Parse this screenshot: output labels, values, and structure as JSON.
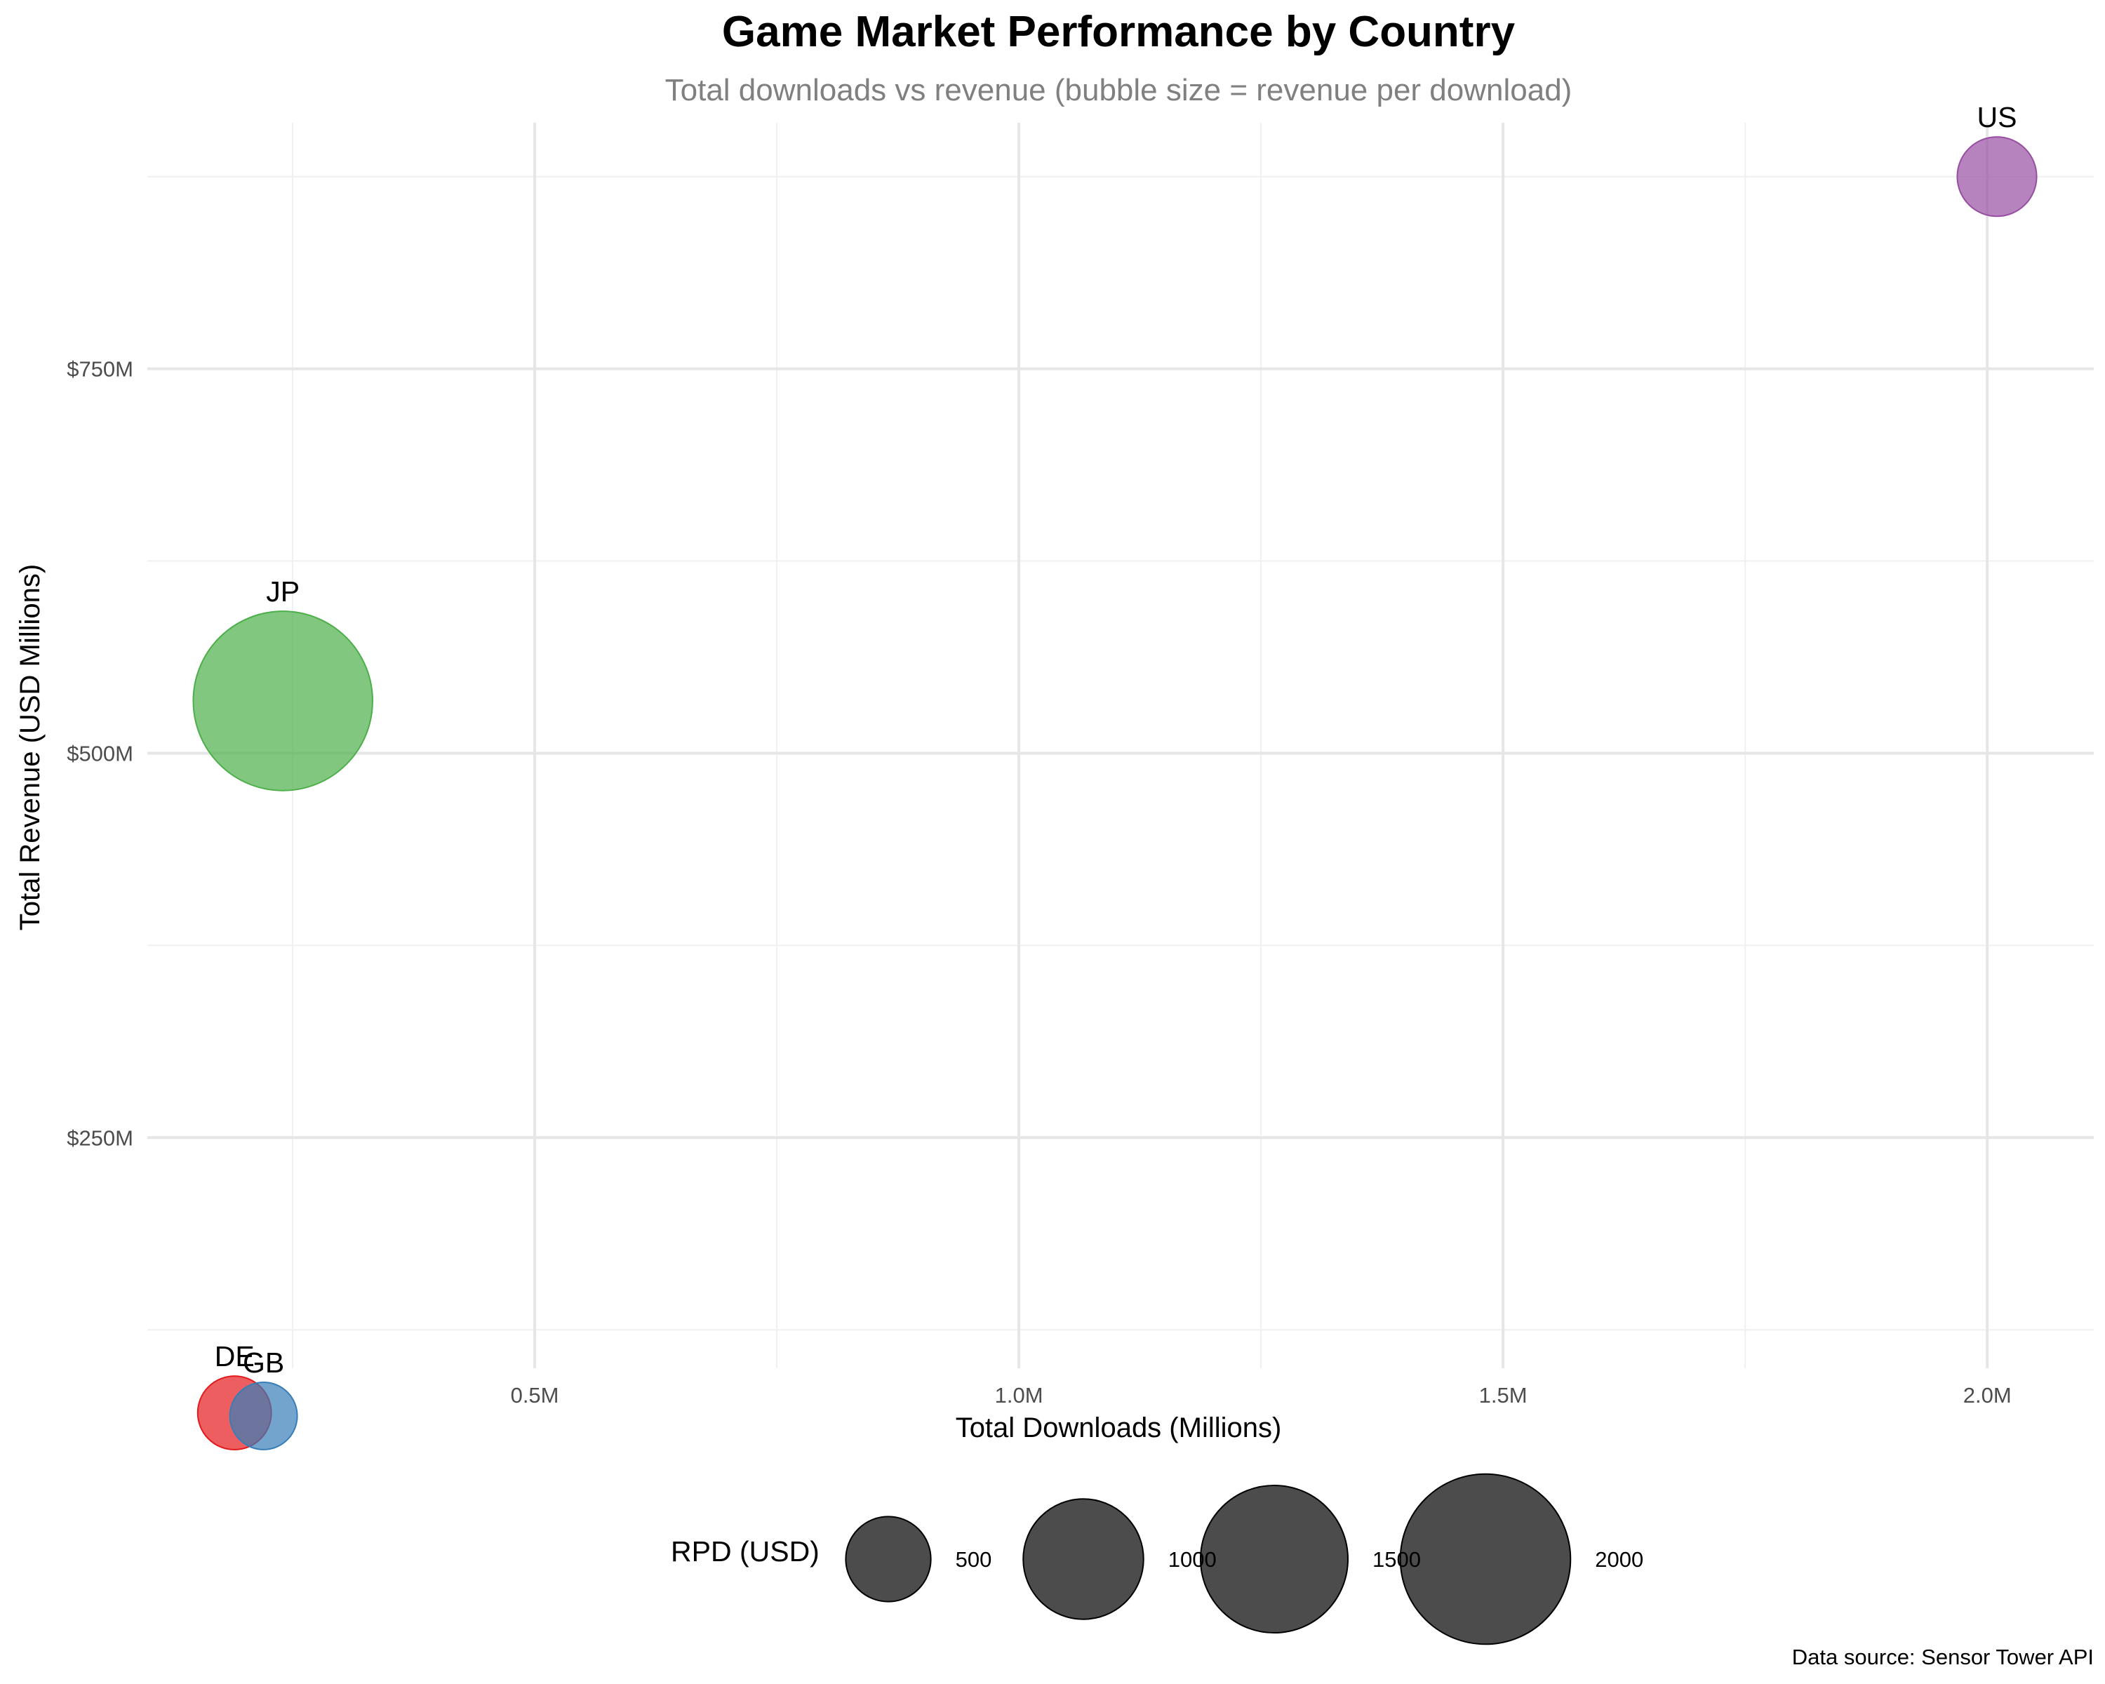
{
  "chart_data": {
    "type": "scatter",
    "title": "Game Market Performance by Country",
    "subtitle": "Total downloads vs revenue (bubble size = revenue per download)",
    "xlabel": "Total Downloads (Millions)",
    "ylabel": "Total Revenue (USD Millions)",
    "xlim": [
      0.1,
      2.11
    ],
    "ylim": [
      100,
      910
    ],
    "x_ticks": [
      0.5,
      1.0,
      1.5,
      2.0
    ],
    "x_tick_labels": [
      "0.5M",
      "1.0M",
      "1.5M",
      "2.0M"
    ],
    "y_ticks": [
      250,
      500,
      750
    ],
    "y_tick_labels": [
      "$250M",
      "$500M",
      "$750M"
    ],
    "grid": true,
    "points": [
      {
        "label": "US",
        "x": 2.01,
        "y": 875,
        "rpd": 435,
        "color": "#984EA3"
      },
      {
        "label": "JP",
        "x": 0.24,
        "y": 534,
        "rpd": 2220,
        "color": "#4DAF4A"
      },
      {
        "label": "DE",
        "x": 0.19,
        "y": 71,
        "rpd": 374,
        "color": "#E41A1C"
      },
      {
        "label": "GB",
        "x": 0.22,
        "y": 69,
        "rpd": 313,
        "color": "#377EB8"
      }
    ],
    "size_legend": {
      "title": "RPD (USD)",
      "values": [
        500,
        1000,
        1500,
        2000
      ],
      "labels": [
        "500",
        "1000",
        "1500",
        "2000"
      ],
      "placement": "bottom"
    },
    "caption": "Data source: Sensor Tower API"
  }
}
